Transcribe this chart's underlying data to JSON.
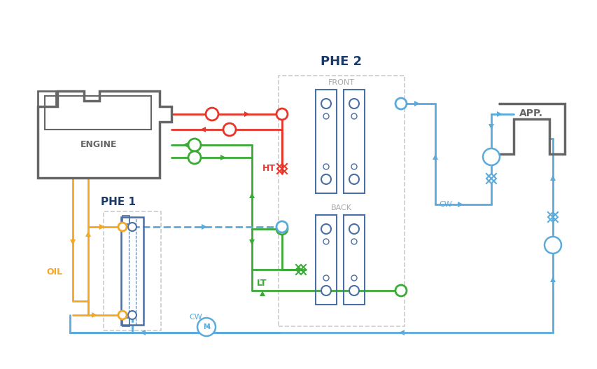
{
  "bg_color": "#ffffff",
  "colors": {
    "red": "#e8352a",
    "green": "#3aaa35",
    "blue": "#5aabdc",
    "orange": "#f5a623",
    "gray": "#666666",
    "dark_blue": "#1a3a6b",
    "light_gray": "#aaaaaa",
    "phe_border": "#cccccc",
    "plate_color": "#4a6fa5"
  },
  "labels": {
    "phe1": "PHE 1",
    "phe2": "PHE 2",
    "engine": "ENGINE",
    "app": "APP.",
    "ht": "HT",
    "lt": "LT",
    "oil": "OIL",
    "cw": "CW",
    "front": "FRONT",
    "back": "BACK",
    "m": "M"
  }
}
